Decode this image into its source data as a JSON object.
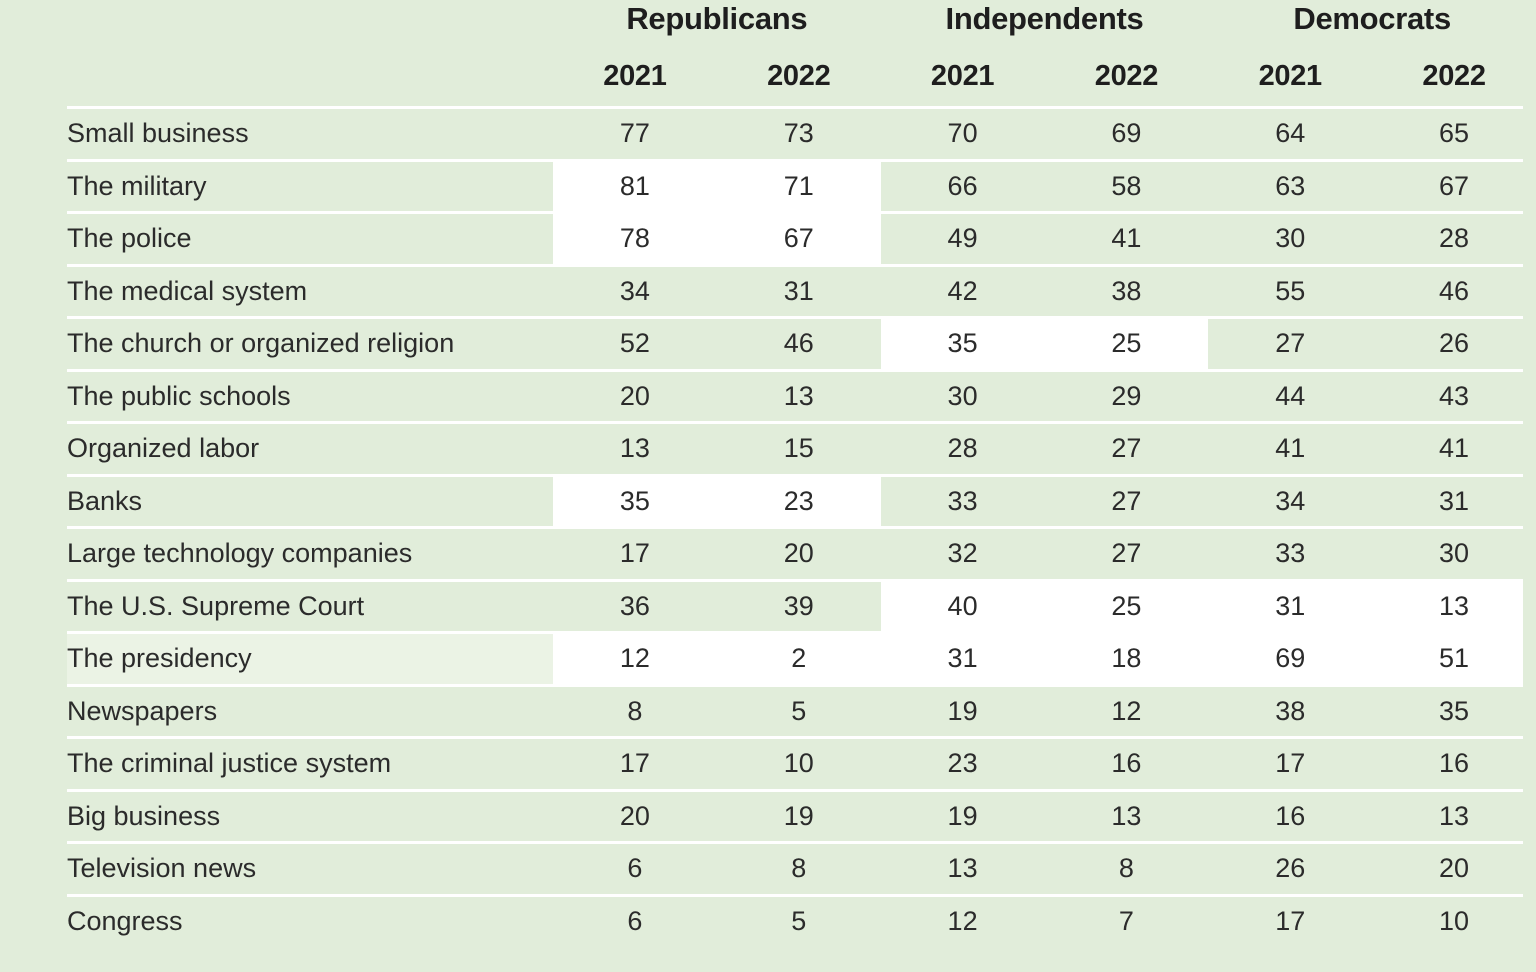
{
  "colors": {
    "background": "#e1edda",
    "highlight": "#ffffff",
    "divider": "#ffffff",
    "text": "#2b2b2b",
    "header-text": "#1e1e1e",
    "label-tint": "#ebf3e5"
  },
  "chart_data": {
    "type": "table",
    "title": "",
    "column_groups": [
      "Republicans",
      "Independents",
      "Democrats"
    ],
    "column_years": [
      "2021",
      "2022",
      "2021",
      "2022",
      "2021",
      "2022"
    ],
    "rows": [
      {
        "label": "Small business",
        "values": [
          77,
          73,
          70,
          69,
          64,
          65
        ],
        "highlight": null
      },
      {
        "label": "The military",
        "values": [
          81,
          71,
          66,
          58,
          63,
          67
        ],
        "highlight": {
          "from": 1,
          "to": 2
        }
      },
      {
        "label": "The police",
        "values": [
          78,
          67,
          49,
          41,
          30,
          28
        ],
        "highlight": {
          "from": 1,
          "to": 2
        }
      },
      {
        "label": "The medical system",
        "values": [
          34,
          31,
          42,
          38,
          55,
          46
        ],
        "highlight": null
      },
      {
        "label": "The church or organized religion",
        "values": [
          52,
          46,
          35,
          25,
          27,
          26
        ],
        "highlight": {
          "from": 3,
          "to": 4
        }
      },
      {
        "label": "The public schools",
        "values": [
          20,
          13,
          30,
          29,
          44,
          43
        ],
        "highlight": null
      },
      {
        "label": "Organized labor",
        "values": [
          13,
          15,
          28,
          27,
          41,
          41
        ],
        "highlight": null
      },
      {
        "label": "Banks",
        "values": [
          35,
          23,
          33,
          27,
          34,
          31
        ],
        "highlight": {
          "from": 1,
          "to": 2
        }
      },
      {
        "label": "Large technology companies",
        "values": [
          17,
          20,
          32,
          27,
          33,
          30
        ],
        "highlight": null
      },
      {
        "label": "The U.S. Supreme Court",
        "values": [
          36,
          39,
          40,
          25,
          31,
          13
        ],
        "highlight": {
          "from": 3,
          "to": 6
        }
      },
      {
        "label": "The presidency",
        "values": [
          12,
          2,
          31,
          18,
          69,
          51
        ],
        "highlight": {
          "from": 1,
          "to": 6
        },
        "label_tint": true
      },
      {
        "label": "Newspapers",
        "values": [
          8,
          5,
          19,
          12,
          38,
          35
        ],
        "highlight": null
      },
      {
        "label": "The criminal justice system",
        "values": [
          17,
          10,
          23,
          16,
          17,
          16
        ],
        "highlight": null
      },
      {
        "label": "Big business",
        "values": [
          20,
          19,
          19,
          13,
          16,
          13
        ],
        "highlight": null
      },
      {
        "label": "Television news",
        "values": [
          6,
          8,
          13,
          8,
          26,
          20
        ],
        "highlight": null
      },
      {
        "label": "Congress",
        "values": [
          6,
          5,
          12,
          7,
          17,
          10
        ],
        "highlight": null
      }
    ]
  }
}
